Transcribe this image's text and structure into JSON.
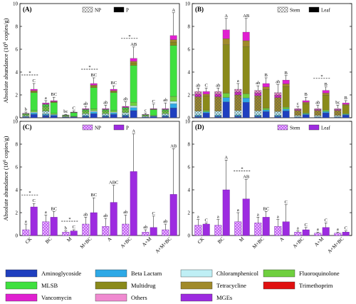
{
  "chart_data": [
    {
      "panel": "(A)",
      "type": "bar",
      "stacked": true,
      "ylabel": "Absolute abundance (10",
      "ylabel_sup": "6",
      "ylabel_tail": " copies/g)",
      "ylim": [
        0,
        10
      ],
      "yticks": [
        0,
        2,
        4,
        6,
        8,
        10
      ],
      "legend": [
        "NP",
        "P"
      ],
      "categories": [
        "CK",
        "BC",
        "M",
        "M+BC",
        "A",
        "A+BC",
        "A+M",
        "A+M+BC"
      ],
      "bars": [
        {
          "cat": "CK",
          "group": "NP",
          "total": 0.4,
          "err": 0.1,
          "sig": "b"
        },
        {
          "cat": "CK",
          "group": "P",
          "total": 2.5,
          "err": 0.5,
          "sig": "C"
        },
        {
          "cat": "BC",
          "group": "NP",
          "total": 1.3,
          "err": 0.2,
          "sig": "a"
        },
        {
          "cat": "BC",
          "group": "P",
          "total": 1.5,
          "err": 0.3,
          "sig": "BC"
        },
        {
          "cat": "M",
          "group": "NP",
          "total": 0.25,
          "err": 0.05,
          "sig": "bc"
        },
        {
          "cat": "M",
          "group": "P",
          "total": 0.5,
          "err": 0.1,
          "sig": "C"
        },
        {
          "cat": "M+BC",
          "group": "NP",
          "total": 0.8,
          "err": 0.2,
          "sig": "ab"
        },
        {
          "cat": "M+BC",
          "group": "P",
          "total": 3.0,
          "err": 0.5,
          "sig": "BC"
        },
        {
          "cat": "A",
          "group": "NP",
          "total": 0.8,
          "err": 0.3,
          "sig": "ab"
        },
        {
          "cat": "A",
          "group": "P",
          "total": 2.5,
          "err": 0.3,
          "sig": "BC"
        },
        {
          "cat": "A+BC",
          "group": "NP",
          "total": 1.0,
          "err": 0.4,
          "sig": "ab"
        },
        {
          "cat": "A+BC",
          "group": "P",
          "total": 5.2,
          "err": 1.0,
          "sig": "AB"
        },
        {
          "cat": "A+M",
          "group": "NP",
          "total": 0.3,
          "err": 0.1,
          "sig": "c"
        },
        {
          "cat": "A+M",
          "group": "P",
          "total": 0.8,
          "err": 0.4,
          "sig": "C"
        },
        {
          "cat": "A+M+BC",
          "group": "NP",
          "total": 0.8,
          "err": 0.5,
          "sig": "ab"
        },
        {
          "cat": "A+M+BC",
          "group": "P",
          "total": 7.2,
          "err": 2.0,
          "sig": "A"
        }
      ],
      "significance_markers": [
        {
          "cat": "CK",
          "symbol": "*"
        },
        {
          "cat": "M+BC",
          "symbol": "*"
        },
        {
          "cat": "A+BC",
          "symbol": "*"
        }
      ]
    },
    {
      "panel": "(B)",
      "type": "bar",
      "stacked": true,
      "ylim": [
        0,
        10
      ],
      "yticks": [
        0,
        2,
        4,
        6,
        8,
        10
      ],
      "legend": [
        "Stem",
        "Leaf"
      ],
      "categories": [
        "CK",
        "BC",
        "M",
        "M+BC",
        "A",
        "A+BC",
        "A+M",
        "A+M+BC"
      ],
      "bars": [
        {
          "cat": "CK",
          "group": "Stem",
          "total": 2.3,
          "err": 0.3,
          "sig": "ab"
        },
        {
          "cat": "CK",
          "group": "Leaf",
          "total": 2.3,
          "err": 0.3,
          "sig": "C"
        },
        {
          "cat": "BC",
          "group": "Stem",
          "total": 2.3,
          "err": 0.3,
          "sig": "ab"
        },
        {
          "cat": "BC",
          "group": "Leaf",
          "total": 7.7,
          "err": 1.0,
          "sig": "A"
        },
        {
          "cat": "M",
          "group": "Stem",
          "total": 2.5,
          "err": 0.5,
          "sig": "a"
        },
        {
          "cat": "M",
          "group": "Leaf",
          "total": 7.5,
          "err": 1.2,
          "sig": "AB"
        },
        {
          "cat": "M+BC",
          "group": "Stem",
          "total": 2.4,
          "err": 0.4,
          "sig": "ab"
        },
        {
          "cat": "M+BC",
          "group": "Leaf",
          "total": 3.0,
          "err": 0.5,
          "sig": "B"
        },
        {
          "cat": "A",
          "group": "Stem",
          "total": 2.2,
          "err": 0.7,
          "sig": "ab"
        },
        {
          "cat": "A",
          "group": "Leaf",
          "total": 3.3,
          "err": 0.4,
          "sig": "B"
        },
        {
          "cat": "A+BC",
          "group": "Stem",
          "total": 0.8,
          "err": 0.2,
          "sig": "c"
        },
        {
          "cat": "A+BC",
          "group": "Leaf",
          "total": 1.5,
          "err": 0.3,
          "sig": "B"
        },
        {
          "cat": "A+M",
          "group": "Stem",
          "total": 0.8,
          "err": 0.3,
          "sig": "ab"
        },
        {
          "cat": "A+M",
          "group": "Leaf",
          "total": 2.4,
          "err": 0.3,
          "sig": "B"
        },
        {
          "cat": "A+M+BC",
          "group": "Stem",
          "total": 0.8,
          "err": 0.3,
          "sig": "bc"
        },
        {
          "cat": "A+M+BC",
          "group": "Leaf",
          "total": 1.3,
          "err": 0.2,
          "sig": "B"
        }
      ],
      "significance_markers": [
        {
          "cat": "A+M",
          "symbol": "*"
        }
      ]
    },
    {
      "panel": "(C)",
      "type": "bar",
      "ylabel": "Absolute abundance (10",
      "ylabel_sup": "6",
      "ylabel_tail": " copies/g)",
      "ylim": [
        0,
        10
      ],
      "yticks": [
        0,
        2,
        4,
        6,
        8,
        10
      ],
      "legend": [
        "NP",
        "P"
      ],
      "categories": [
        "CK",
        "BC",
        "M",
        "M+BC",
        "A",
        "A+BC",
        "A+M",
        "A+M+BC"
      ],
      "series": [
        {
          "name": "NP",
          "values": [
            0.5,
            1.2,
            0.3,
            1.0,
            0.8,
            1.0,
            0.3,
            0.5
          ],
          "errors": [
            0.5,
            0.6,
            0.1,
            0.6,
            0.7,
            0.8,
            0.2,
            0.5
          ],
          "sig": [
            "a",
            "a",
            "b",
            "ab",
            "ab",
            "ab",
            "ab",
            "ab"
          ]
        },
        {
          "name": "P",
          "values": [
            2.5,
            1.6,
            0.4,
            2.0,
            2.9,
            5.6,
            0.7,
            3.6
          ],
          "errors": [
            0.3,
            0.5,
            0.1,
            1.3,
            1.5,
            3.3,
            1.0,
            4.0
          ],
          "sig": [
            "C",
            "BC",
            "C",
            "BC",
            "ABC",
            "A",
            "C",
            "AB"
          ]
        }
      ],
      "significance_markers": [
        {
          "cat": "CK",
          "symbol": "*"
        },
        {
          "cat": "M",
          "symbol": "*"
        }
      ]
    },
    {
      "panel": "(D)",
      "type": "bar",
      "ylim": [
        0,
        10
      ],
      "yticks": [
        0,
        2,
        4,
        6,
        8,
        10
      ],
      "legend": [
        "Stem",
        "Leaf"
      ],
      "categories": [
        "CK",
        "BC",
        "M",
        "M+BC",
        "A",
        "A+BC",
        "A+M",
        "A+M+BC"
      ],
      "series": [
        {
          "name": "Stem",
          "values": [
            0.9,
            0.9,
            1.2,
            1.1,
            0.8,
            0.3,
            0.2,
            0.2
          ],
          "errors": [
            0.5,
            0.5,
            0.8,
            0.5,
            0.6,
            0.1,
            0.1,
            0.1
          ],
          "sig": [
            "a",
            "a",
            "a",
            "a",
            "a",
            "a",
            "a",
            "a"
          ]
        },
        {
          "name": "Leaf",
          "values": [
            1.0,
            4.0,
            3.2,
            1.6,
            1.2,
            0.5,
            0.7,
            0.3
          ],
          "errors": [
            0.1,
            2.6,
            1.7,
            0.5,
            1.5,
            0.2,
            0.4,
            0.1
          ],
          "sig": [
            "C",
            "A",
            "AB",
            "BC",
            "C",
            "C",
            "C",
            "C"
          ]
        }
      ],
      "significance_markers": [
        {
          "cat": "M",
          "symbol": "*"
        }
      ]
    }
  ],
  "gene_legend": [
    {
      "name": "Aminoglycoside",
      "color": "#1f3fbf"
    },
    {
      "name": "Beta Lactam",
      "color": "#2ea9e6"
    },
    {
      "name": "Chloramphenicol",
      "color": "#bfeff5"
    },
    {
      "name": "Fluoroquinolone",
      "color": "#6fcf3f"
    },
    {
      "name": "MLSB",
      "color": "#3fe03f"
    },
    {
      "name": "Multidrug",
      "color": "#8a8a1a"
    },
    {
      "name": "Tetracycline",
      "color": "#a08a2a"
    },
    {
      "name": "Trimethoprim",
      "color": "#e01010"
    },
    {
      "name": "Vancomycin",
      "color": "#e020d0"
    },
    {
      "name": "Others",
      "color": "#f08ad0"
    },
    {
      "name": "MGEs",
      "color": "#9d2be0"
    }
  ]
}
